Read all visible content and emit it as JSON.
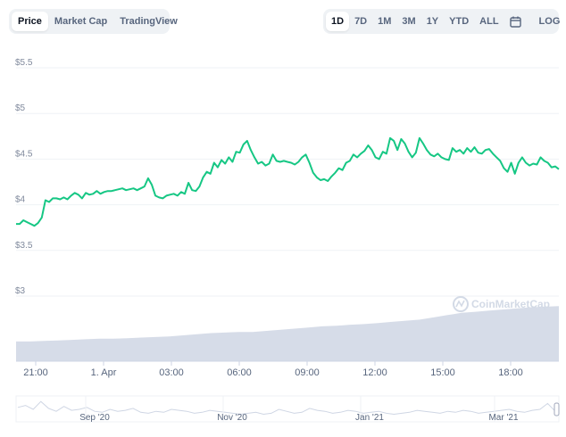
{
  "tabs": [
    {
      "label": "Price",
      "active": true
    },
    {
      "label": "Market Cap",
      "active": false
    },
    {
      "label": "TradingView",
      "active": false
    }
  ],
  "range_tabs": [
    {
      "label": "1D",
      "active": true
    },
    {
      "label": "7D",
      "active": false
    },
    {
      "label": "1M",
      "active": false
    },
    {
      "label": "3M",
      "active": false
    },
    {
      "label": "1Y",
      "active": false
    },
    {
      "label": "YTD",
      "active": false
    },
    {
      "label": "ALL",
      "active": false
    }
  ],
  "calendar_icon": "calendar-icon",
  "log_label": "LOG",
  "watermark": "CoinMarketCap",
  "colors": {
    "line": "#16c784",
    "volume": "#cfd6e4",
    "grid": "#eff2f5",
    "nav_line": "#cfd6e4"
  },
  "chart_data": {
    "type": "line",
    "ylim": [
      3,
      5.5
    ],
    "y_ticks": [
      "$5.5",
      "$5",
      "$4.5",
      "$4",
      "$3.5",
      "$3"
    ],
    "y_tick_values": [
      5.5,
      5,
      4.5,
      4,
      3.5,
      3
    ],
    "x_ticks": [
      "21:00",
      "1. Apr",
      "03:00",
      "06:00",
      "09:00",
      "12:00",
      "15:00",
      "18:00"
    ],
    "series": [
      {
        "values": [
          3.79,
          3.79,
          3.83,
          3.81,
          3.79,
          3.77,
          3.8,
          3.86,
          4.05,
          4.03,
          4.07,
          4.07,
          4.06,
          4.08,
          4.06,
          4.1,
          4.13,
          4.11,
          4.07,
          4.13,
          4.11,
          4.12,
          4.15,
          4.12,
          4.14,
          4.15,
          4.15,
          4.16,
          4.17,
          4.18,
          4.16,
          4.17,
          4.18,
          4.16,
          4.18,
          4.2,
          4.29,
          4.22,
          4.1,
          4.08,
          4.07,
          4.1,
          4.11,
          4.12,
          4.1,
          4.14,
          4.12,
          4.24,
          4.16,
          4.15,
          4.2,
          4.3,
          4.36,
          4.34,
          4.46,
          4.41,
          4.49,
          4.45,
          4.52,
          4.47,
          4.58,
          4.57,
          4.66,
          4.7,
          4.6,
          4.52,
          4.45,
          4.47,
          4.43,
          4.45,
          4.55,
          4.48,
          4.47,
          4.48,
          4.47,
          4.46,
          4.44,
          4.47,
          4.52,
          4.55,
          4.46,
          4.35,
          4.3,
          4.27,
          4.28,
          4.26,
          4.31,
          4.35,
          4.4,
          4.38,
          4.46,
          4.48,
          4.55,
          4.52,
          4.56,
          4.59,
          4.65,
          4.6,
          4.52,
          4.5,
          4.58,
          4.56,
          4.73,
          4.7,
          4.6,
          4.72,
          4.67,
          4.58,
          4.52,
          4.57,
          4.73,
          4.67,
          4.6,
          4.55,
          4.53,
          4.56,
          4.52,
          4.5,
          4.49,
          4.62,
          4.58,
          4.6,
          4.56,
          4.62,
          4.58,
          4.63,
          4.57,
          4.56,
          4.6,
          4.61,
          4.56,
          4.52,
          4.48,
          4.4,
          4.36,
          4.46,
          4.34,
          4.46,
          4.52,
          4.46,
          4.43,
          4.45,
          4.44,
          4.52,
          4.48,
          4.46,
          4.41,
          4.42,
          4.39
        ]
      }
    ],
    "volume": [
      0.35,
      0.35,
      0.36,
      0.37,
      0.38,
      0.39,
      0.4,
      0.4,
      0.41,
      0.42,
      0.43,
      0.44,
      0.46,
      0.48,
      0.5,
      0.51,
      0.52,
      0.52,
      0.54,
      0.56,
      0.58,
      0.6,
      0.62,
      0.63,
      0.65,
      0.66,
      0.68,
      0.7,
      0.72,
      0.74,
      0.78,
      0.82,
      0.86,
      0.88,
      0.9,
      0.92,
      0.94,
      0.96,
      0.97,
      0.98
    ],
    "navigator": {
      "labels": [
        "Sep '20",
        "Nov '20",
        "Jan '21",
        "Mar '21"
      ]
    }
  }
}
